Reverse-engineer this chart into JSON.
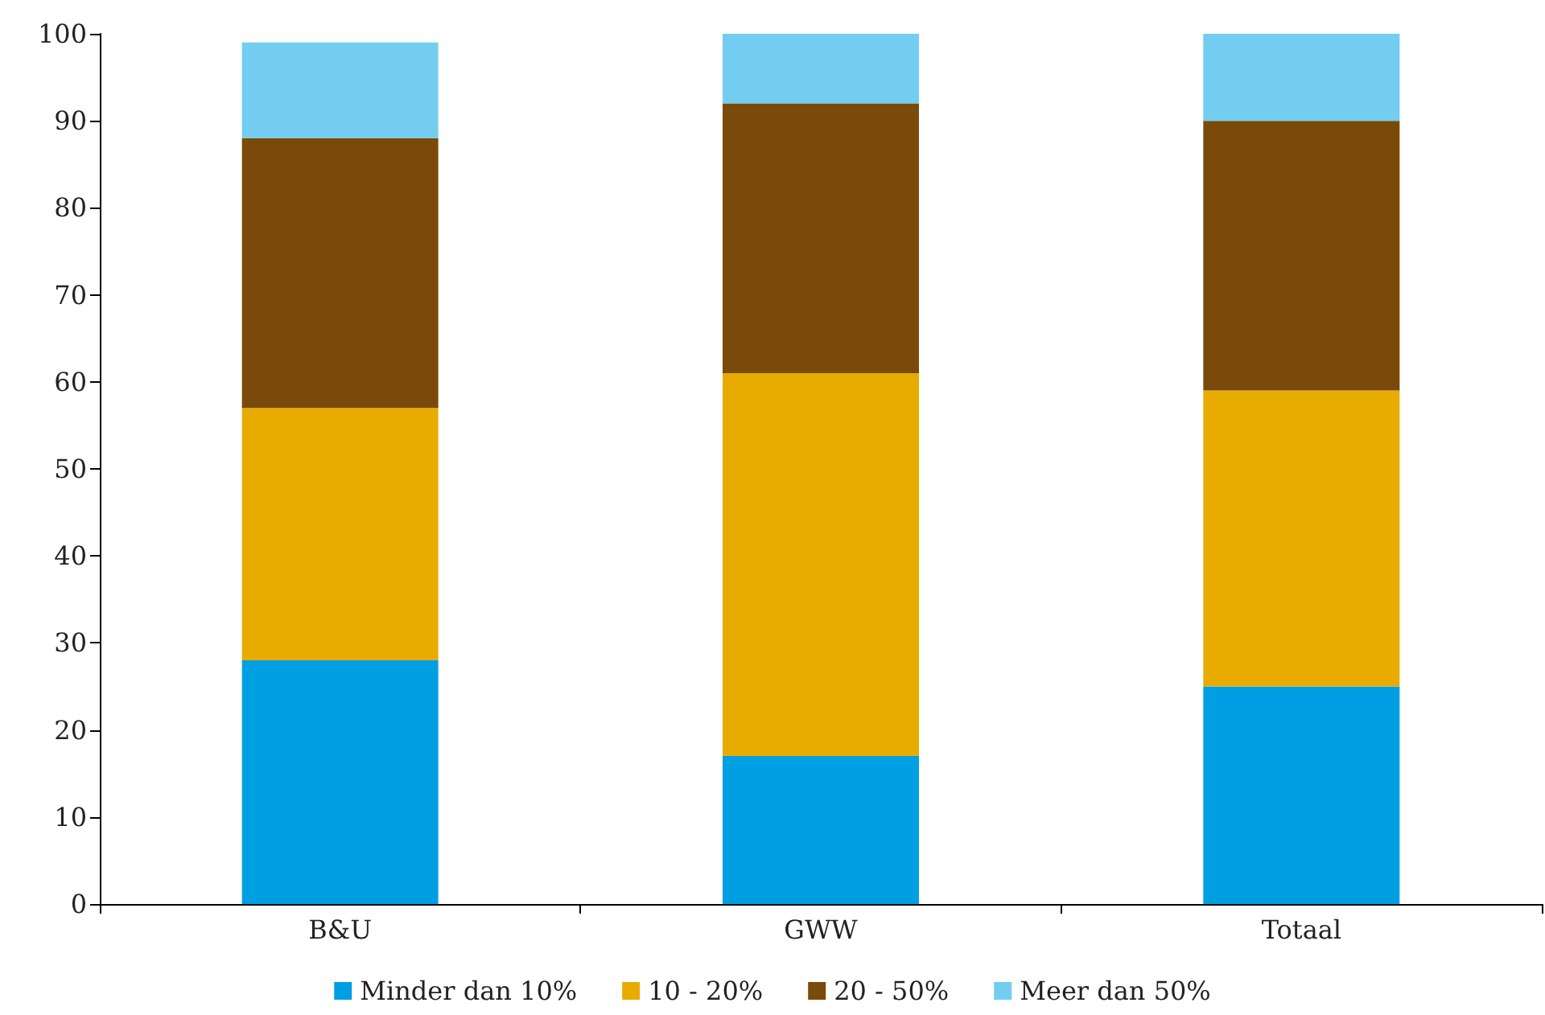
{
  "chart_data": {
    "type": "bar",
    "stacked": true,
    "categories": [
      "B&U",
      "GWW",
      "Totaal"
    ],
    "series": [
      {
        "name": "Minder dan 10%",
        "color": "#009fe3",
        "values": [
          28,
          17,
          25
        ]
      },
      {
        "name": "10 - 20%",
        "color": "#e8ac00",
        "values": [
          29,
          44,
          34
        ]
      },
      {
        "name": "20 - 50%",
        "color": "#7a4a0a",
        "values": [
          31,
          31,
          31
        ]
      },
      {
        "name": "Meer dan 50%",
        "color": "#73cdf0",
        "values": [
          11,
          8,
          10
        ]
      }
    ],
    "ylim": [
      0,
      100
    ],
    "yticks": [
      0,
      10,
      20,
      30,
      40,
      50,
      60,
      70,
      80,
      90,
      100
    ],
    "grid": false,
    "legend": "bottom"
  }
}
